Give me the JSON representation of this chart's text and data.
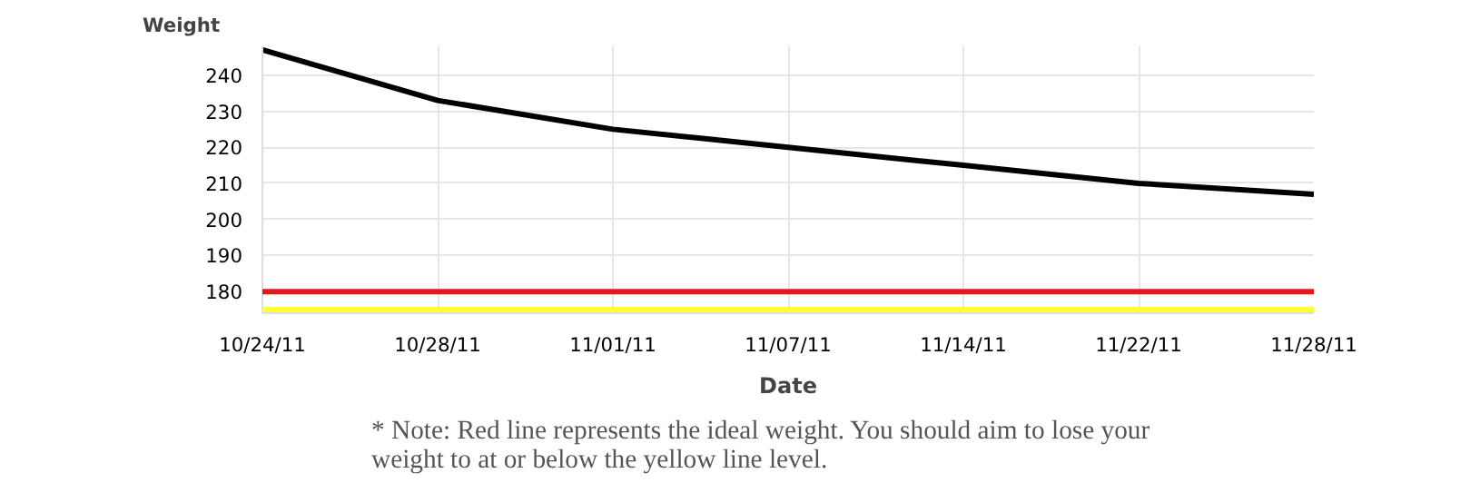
{
  "chart_data": {
    "type": "line",
    "ylabel": "Weight",
    "xlabel": "Date",
    "categories": [
      "10/24/11",
      "10/28/11",
      "11/01/11",
      "11/07/11",
      "11/14/11",
      "11/22/11",
      "11/28/11"
    ],
    "series": [
      {
        "color": "#000000",
        "values": [
          247,
          233,
          225,
          220,
          215,
          210,
          207
        ]
      }
    ],
    "ylim": [
      174,
      248
    ],
    "yticks": [
      180,
      190,
      200,
      210,
      220,
      230,
      240
    ],
    "ref_lines": [
      {
        "axis": "y",
        "value": 180,
        "color": "#e31a1c"
      },
      {
        "axis": "y",
        "value": 175,
        "color": "#ffff33"
      }
    ],
    "grid": true,
    "marker": "none",
    "line_style": "solid",
    "annotations": [
      "* Note: Red line represents the ideal weight. You should aim to lose your weight to at or below the yellow line level."
    ]
  }
}
